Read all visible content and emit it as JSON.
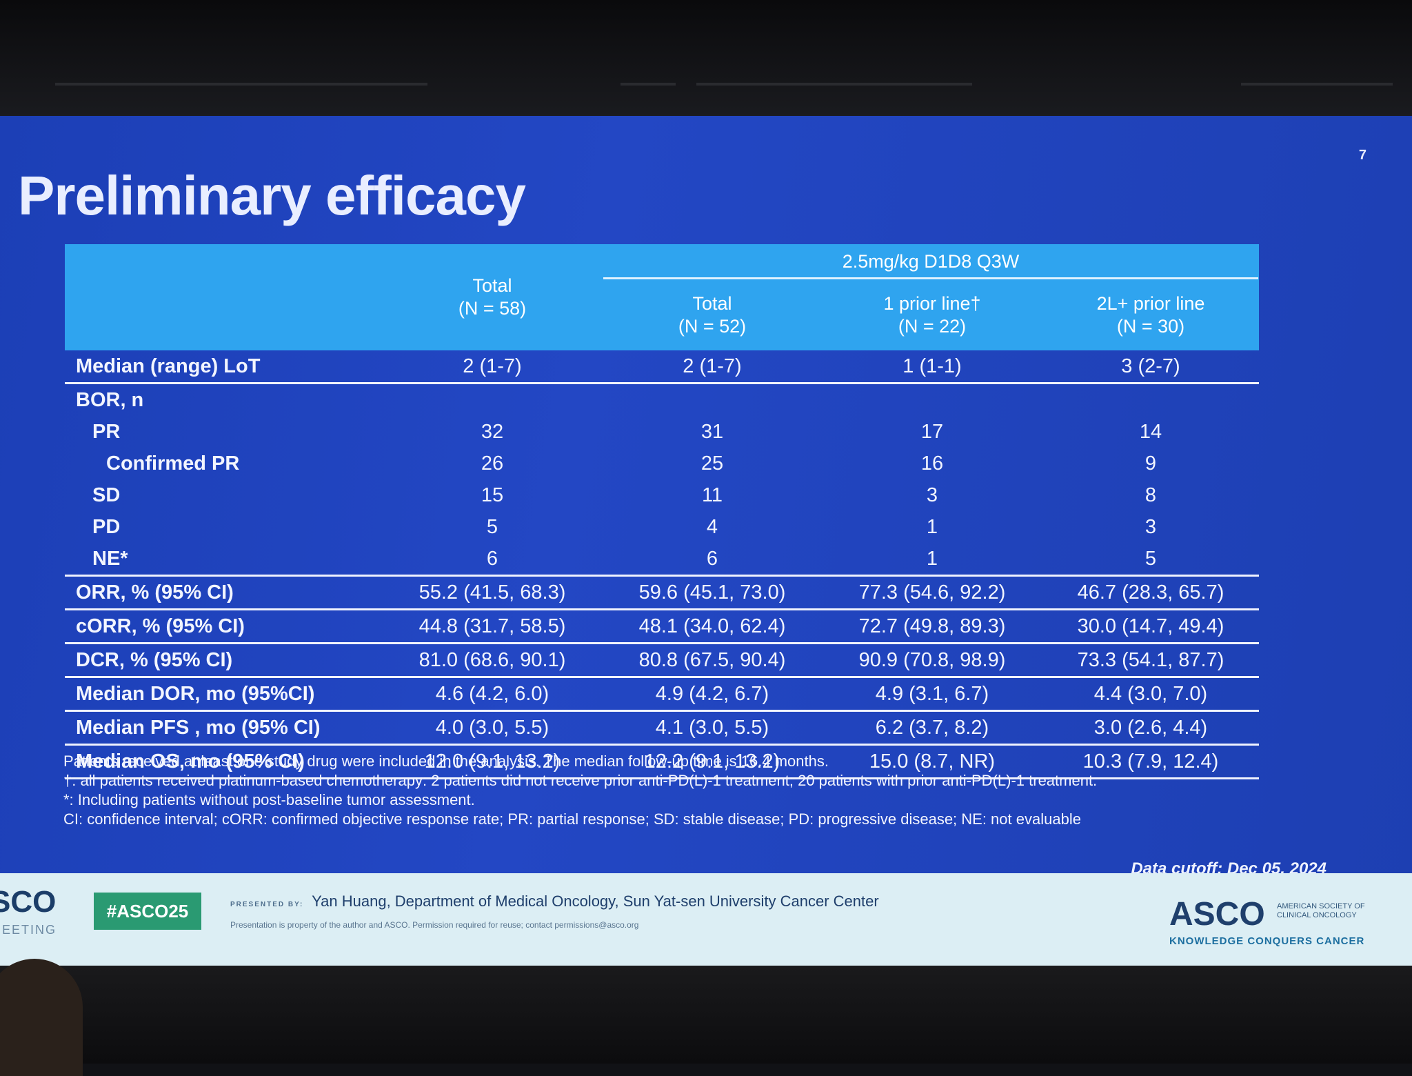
{
  "slide": {
    "number": "7",
    "title": "Preliminary efficacy"
  },
  "table": {
    "group_header": "2.5mg/kg D1D8 Q3W",
    "columns": [
      {
        "label": "Total",
        "n": "(N = 58)"
      },
      {
        "label": "Total",
        "n": "(N = 52)"
      },
      {
        "label": "1 prior line†",
        "n": "(N = 22)"
      },
      {
        "label": "2L+ prior line",
        "n": "(N = 30)"
      }
    ],
    "rows": [
      {
        "label": "Median (range) LoT",
        "values": [
          "2 (1-7)",
          "2 (1-7)",
          "1 (1-1)",
          "3 (2-7)"
        ]
      },
      {
        "label": "BOR, n",
        "values": [
          "",
          "",
          "",
          ""
        ]
      },
      {
        "label": "PR",
        "values": [
          "32",
          "31",
          "17",
          "14"
        ]
      },
      {
        "label": "Confirmed PR",
        "values": [
          "26",
          "25",
          "16",
          "9"
        ]
      },
      {
        "label": "SD",
        "values": [
          "15",
          "11",
          "3",
          "8"
        ]
      },
      {
        "label": "PD",
        "values": [
          "5",
          "4",
          "1",
          "3"
        ]
      },
      {
        "label": "NE*",
        "values": [
          "6",
          "6",
          "1",
          "5"
        ]
      },
      {
        "label": "ORR, % (95% CI)",
        "values": [
          "55.2 (41.5, 68.3)",
          "59.6 (45.1, 73.0)",
          "77.3 (54.6, 92.2)",
          "46.7 (28.3, 65.7)"
        ]
      },
      {
        "label": "cORR, % (95% CI)",
        "values": [
          "44.8 (31.7, 58.5)",
          "48.1 (34.0, 62.4)",
          "72.7 (49.8, 89.3)",
          "30.0 (14.7, 49.4)"
        ]
      },
      {
        "label": "DCR, % (95% CI)",
        "values": [
          "81.0 (68.6, 90.1)",
          "80.8 (67.5, 90.4)",
          "90.9 (70.8, 98.9)",
          "73.3 (54.1, 87.7)"
        ]
      },
      {
        "label": "Median DOR, mo (95%CI)",
        "values": [
          "4.6 (4.2, 6.0)",
          "4.9 (4.2, 6.7)",
          "4.9 (3.1, 6.7)",
          "4.4 (3.0, 7.0)"
        ]
      },
      {
        "label": "Median PFS , mo (95% CI)",
        "values": [
          "4.0 (3.0, 5.5)",
          "4.1 (3.0, 5.5)",
          "6.2 (3.7, 8.2)",
          "3.0 (2.6, 4.4)"
        ]
      },
      {
        "label": "Median OS, mo (95% CI)",
        "values": [
          "12.0 (9.1, 13.2)",
          "12.2 (9.1, 13.2)",
          "15.0 (8.7, NR)",
          "10.3 (7.9, 12.4)"
        ]
      }
    ]
  },
  "footnotes": [
    "Patients received at least one study drug were included in the analysis. The median follow-up time is 16.4 months.",
    "†: all patients received platinum-based chemotherapy: 2 patients did not receive prior anti-PD(L)-1 treatment; 20 patients with prior anti-PD(L)-1 treatment.",
    "*: Including patients without post-baseline tumor assessment.",
    "CI: confidence interval; cORR: confirmed objective response rate; PR: partial response; SD: stable disease; PD: progressive disease; NE: not evaluable"
  ],
  "data_cutoff": "Data cutoff: Dec 05, 2024",
  "bottom_bar": {
    "meeting_logo": "SCO",
    "meeting_sub": "MEETING",
    "hashtag": "#ASCO25",
    "presented_by_label": "PRESENTED BY:",
    "presenter": "Yan Huang, Department of Medical Oncology, Sun Yat-sen University Cancer Center",
    "presenter_note": "Presentation is property of the author and ASCO. Permission required for reuse; contact permissions@asco.org",
    "asco_logo": "ASCO",
    "asco_society": "AMERICAN SOCIETY OF CLINICAL ONCOLOGY",
    "asco_tagline": "KNOWLEDGE CONQUERS CANCER"
  },
  "colors": {
    "slide_background": "#2245c2",
    "header_fill": "#2fa4ef",
    "bottom_bar": "#dceef4",
    "hashtag_fill": "#2a9a72"
  }
}
